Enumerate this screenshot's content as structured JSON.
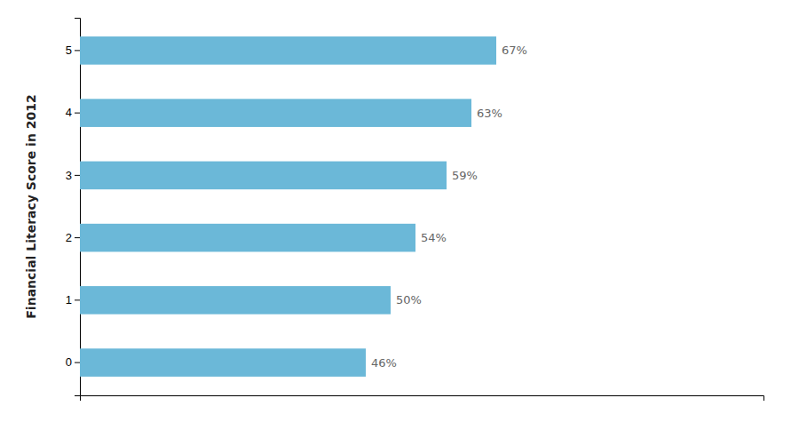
{
  "chart_data": {
    "type": "bar",
    "orientation": "horizontal",
    "ylabel": "Financial Literacy Score in 2012",
    "categories": [
      "0",
      "1",
      "2",
      "3",
      "4",
      "5"
    ],
    "values": [
      46,
      50,
      54,
      59,
      63,
      67
    ],
    "value_labels": [
      "46%",
      "50%",
      "54%",
      "59%",
      "63%",
      "67%"
    ],
    "data_labels": true,
    "color": "#6bb8d8",
    "xlim": [
      0,
      110
    ],
    "xticks": [],
    "tick_labels": "y",
    "grid": false
  }
}
